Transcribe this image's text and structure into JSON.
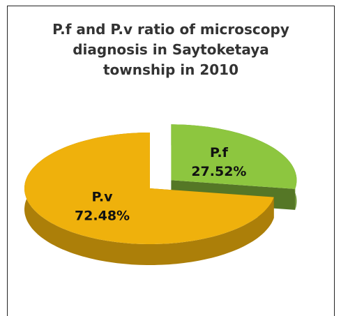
{
  "chart_data": {
    "type": "pie",
    "title": "P.f and P.v ratio of microscopy diagnosis in  Saytoketaya township in 2010",
    "categories": [
      "P.f",
      "P.v"
    ],
    "values": [
      27.52,
      72.48
    ],
    "value_labels": [
      "27.52%",
      "72.48%"
    ],
    "colors": [
      "#8dc63f",
      "#efb10c"
    ]
  }
}
